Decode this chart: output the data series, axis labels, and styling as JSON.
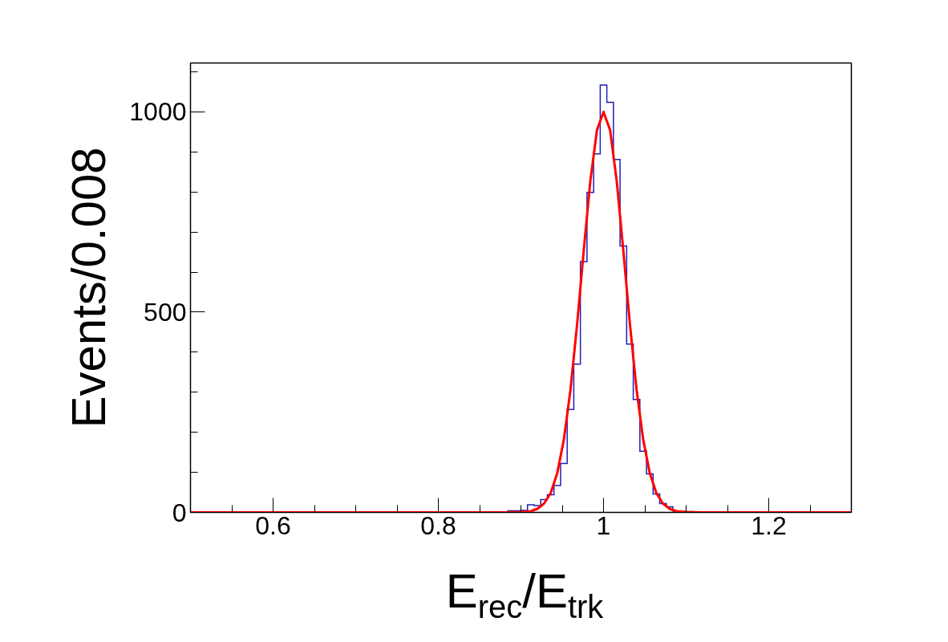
{
  "chart_data": {
    "type": "histogram",
    "xlabel": "E$_{rec}$/E$_{trk}$",
    "ylabel": "Events/0.008",
    "color": "#1f1fb4",
    "bins": [
      0.5,
      0.508,
      0.516,
      0.524,
      0.532,
      0.54,
      0.548,
      0.556,
      0.564,
      0.572,
      0.58,
      0.588,
      0.596,
      0.604,
      0.612,
      0.62,
      0.628,
      0.636,
      0.644,
      0.652,
      0.66,
      0.668,
      0.676,
      0.684,
      0.692,
      0.7,
      0.708,
      0.716,
      0.724,
      0.732,
      0.74,
      0.748,
      0.756,
      0.764,
      0.772,
      0.78,
      0.788,
      0.796,
      0.804,
      0.812,
      0.82,
      0.828,
      0.836,
      0.844,
      0.852,
      0.86,
      0.868,
      0.876,
      0.884,
      0.892,
      0.9,
      0.908,
      0.916,
      0.924,
      0.932,
      0.94,
      0.948,
      0.956,
      0.964,
      0.972,
      0.98,
      0.988,
      0.996,
      1.004,
      1.012,
      1.02,
      1.028,
      1.036,
      1.044,
      1.052,
      1.06,
      1.068,
      1.076,
      1.084,
      1.092,
      1.1,
      1.108,
      1.116,
      1.124,
      1.132,
      1.14,
      1.148,
      1.156,
      1.164,
      1.172,
      1.18,
      1.188,
      1.196,
      1.204,
      1.212,
      1.22,
      1.228,
      1.236,
      1.244,
      1.252,
      1.26,
      1.268,
      1.276,
      1.284,
      1.292,
      1.3
    ],
    "values": [
      0,
      0,
      0,
      0,
      0,
      0,
      0,
      0,
      0,
      0,
      0,
      0,
      0,
      0,
      0,
      0,
      0,
      0,
      0,
      0,
      0,
      0,
      0,
      0,
      0,
      0,
      0,
      0,
      0,
      0,
      0,
      0,
      0,
      0,
      0,
      0,
      0,
      0,
      0,
      0,
      0,
      0,
      0,
      0,
      0,
      0,
      0,
      0,
      4,
      4,
      5,
      19,
      17,
      32,
      44,
      67,
      122,
      257,
      370,
      626,
      799,
      895,
      1067,
      1024,
      881,
      665,
      420,
      282,
      153,
      96,
      46,
      22,
      14,
      3,
      2,
      2,
      0,
      0,
      0,
      0,
      0,
      0,
      0,
      0,
      0,
      0,
      0,
      0,
      0,
      0,
      0,
      0,
      0,
      0,
      0,
      0,
      0,
      0,
      0,
      0
    ],
    "series": [
      {
        "type": "line",
        "color": "#ff0000",
        "x": [
          0.5,
          0.88,
          0.9,
          0.912,
          0.92,
          0.928,
          0.936,
          0.944,
          0.952,
          0.96,
          0.968,
          0.976,
          0.984,
          0.992,
          1.0,
          1.008,
          1.016,
          1.024,
          1.032,
          1.04,
          1.048,
          1.056,
          1.064,
          1.072,
          1.08,
          1.088,
          1.1,
          1.12,
          1.3
        ],
        "values": [
          0,
          0,
          1,
          3,
          9,
          22,
          48,
          98,
          182,
          306,
          469,
          653,
          827,
          954,
          1000,
          954,
          827,
          653,
          469,
          306,
          182,
          98,
          48,
          22,
          9,
          3,
          1,
          0,
          0
        ]
      }
    ],
    "xlim": [
      0.5,
      1.3
    ],
    "ylim": [
      0,
      1122
    ],
    "xticks": [
      {
        "value": 0.55,
        "label": null
      },
      0.6,
      {
        "value": 0.65,
        "label": null
      },
      {
        "value": 0.7,
        "label": null
      },
      {
        "value": 0.75,
        "label": null
      },
      0.8,
      {
        "value": 0.85,
        "label": null
      },
      {
        "value": 0.9,
        "label": null
      },
      {
        "value": 0.95,
        "label": null
      },
      1,
      {
        "value": 1.05,
        "label": null
      },
      {
        "value": 1.1,
        "label": null
      },
      {
        "value": 1.15,
        "label": null
      },
      1.2,
      {
        "value": 1.25,
        "label": null
      }
    ],
    "yticks": [
      0,
      {
        "value": 100,
        "label": null
      },
      {
        "value": 200,
        "label": null
      },
      {
        "value": 300,
        "label": null
      },
      {
        "value": 400,
        "label": null
      },
      500,
      {
        "value": 600,
        "label": null
      },
      {
        "value": 700,
        "label": null
      },
      {
        "value": 800,
        "label": null
      },
      {
        "value": 900,
        "label": null
      },
      1000,
      {
        "value": 1100,
        "label": null
      }
    ],
    "grid": false
  }
}
